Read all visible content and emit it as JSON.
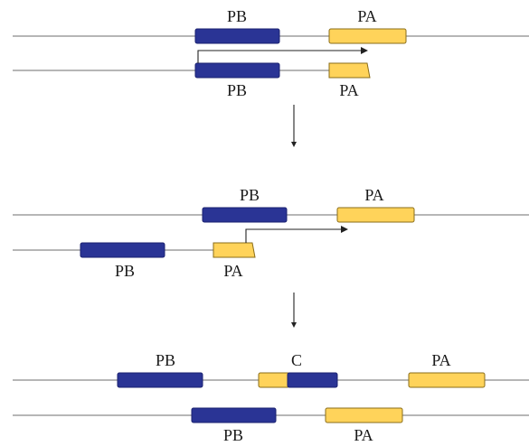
{
  "colors": {
    "pb_block": "#2a3495",
    "pa_block": "#ffd35a",
    "dna_line": "#8a8a8a",
    "arrow": "#222222"
  },
  "stage1": {
    "top_pb_label": "PB",
    "top_pa_label": "PA",
    "bottom_pb_label": "PB",
    "bottom_pa_label": "PA"
  },
  "stage2": {
    "top_pb_label": "PB",
    "top_pa_label": "PA",
    "bottom_pb_label": "PB",
    "bottom_pa_label": "PA"
  },
  "stage3": {
    "top_pb_label": "PB",
    "chimera_label": "C",
    "top_pa_label": "PA",
    "bottom_pb_label": "PB",
    "bottom_pa_label": "PA"
  }
}
